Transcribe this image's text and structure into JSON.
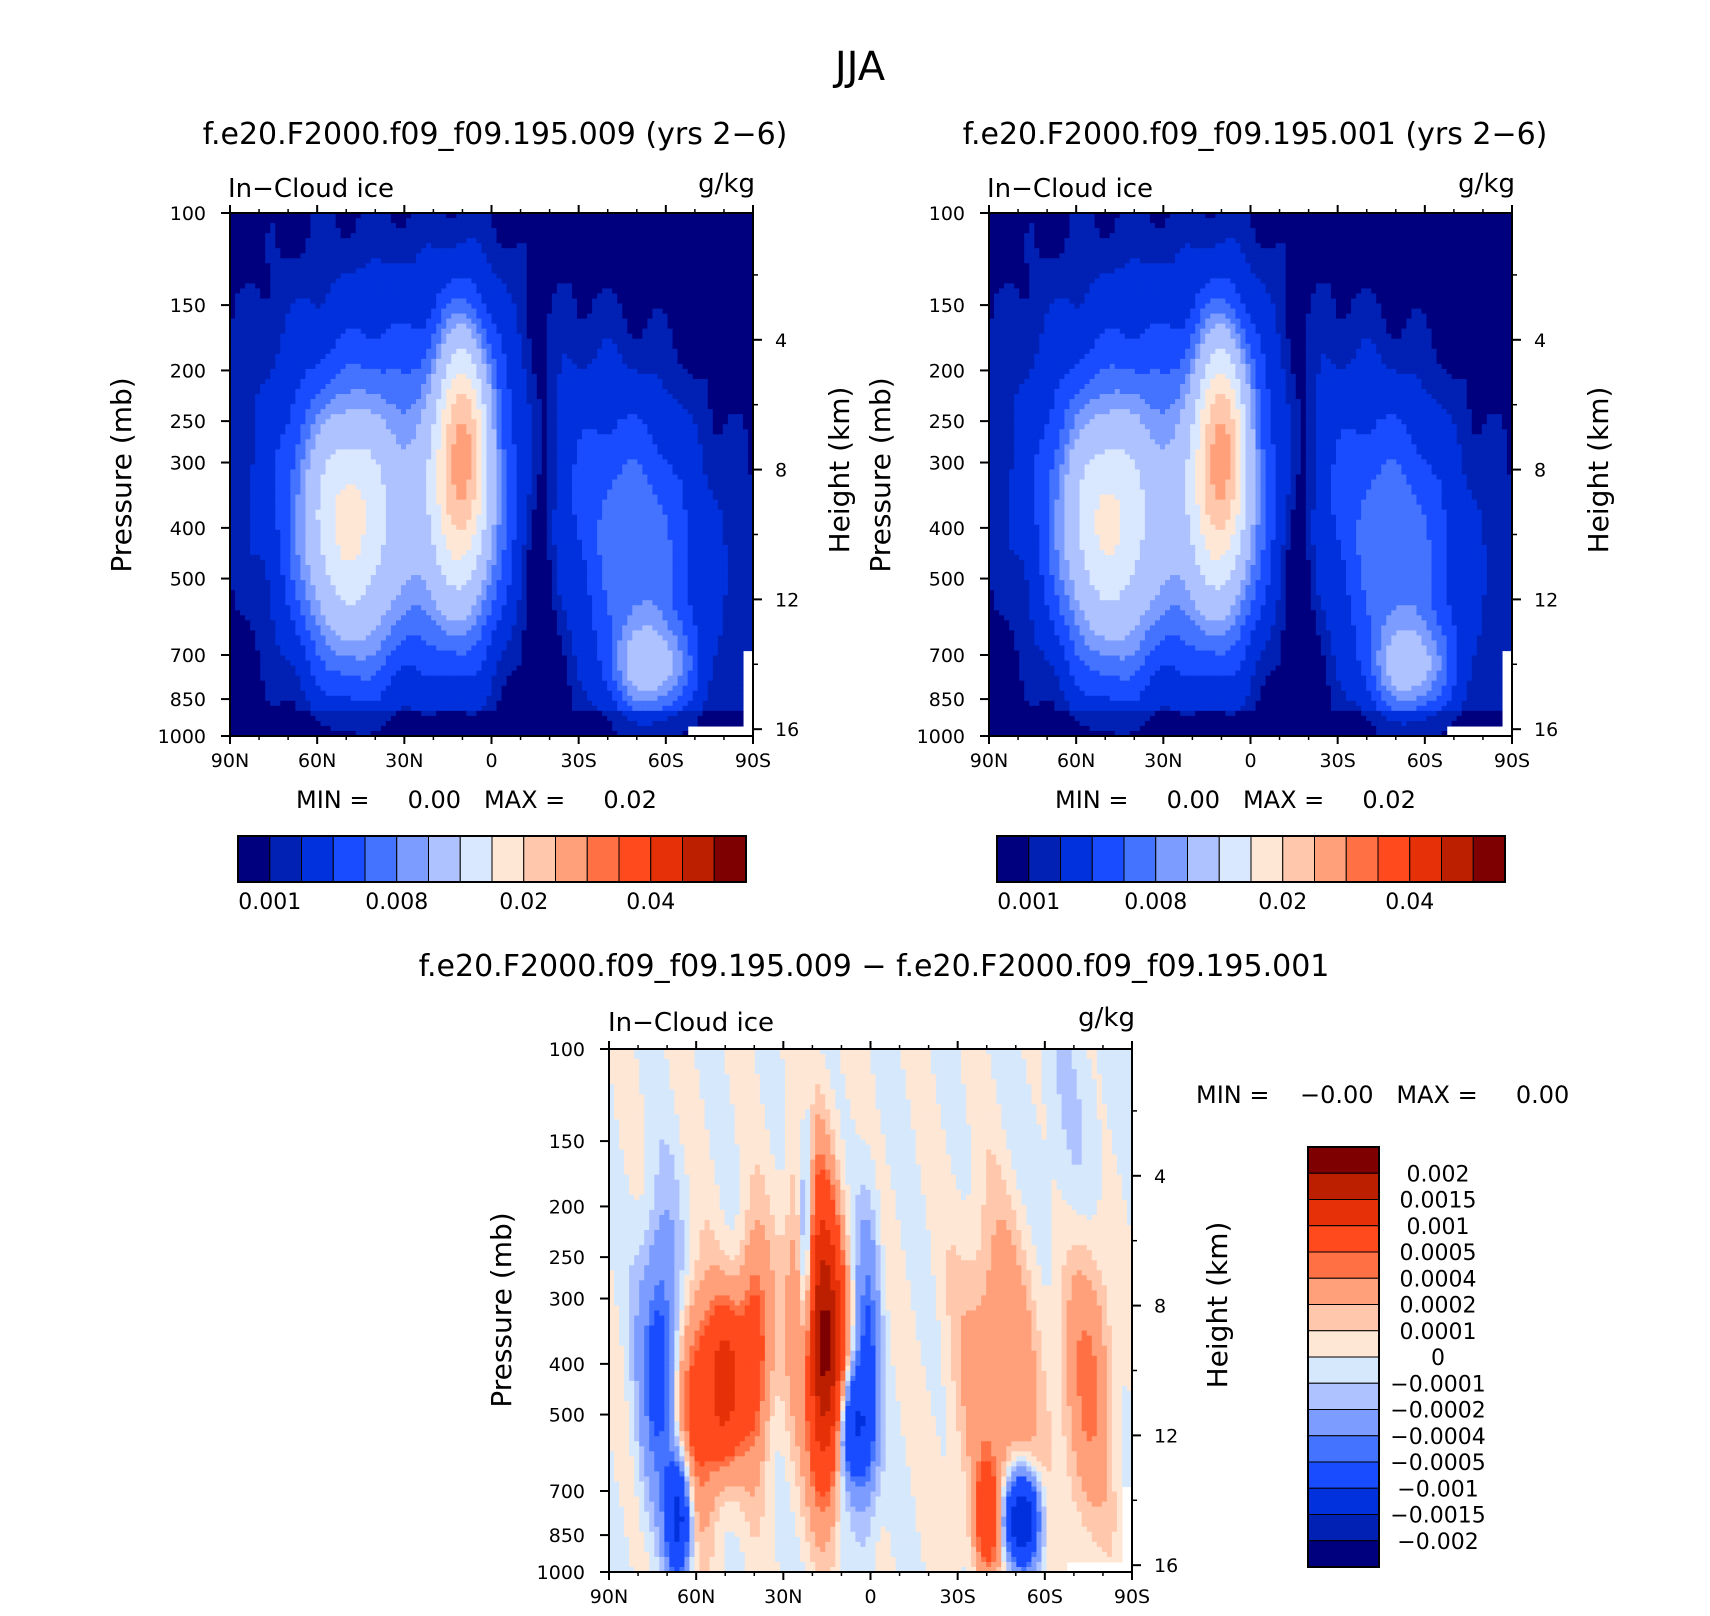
{
  "figure_title": "JJA",
  "colors": {
    "abs_palette": [
      "#00007e",
      "#0021b4",
      "#0031dd",
      "#1a4cff",
      "#4473ff",
      "#7c9dff",
      "#aec2ff",
      "#d9e7ff",
      "#ffe7d6",
      "#ffc8ad",
      "#ffa07a",
      "#ff7044",
      "#ff4a1e",
      "#e53008",
      "#bb1f00",
      "#7e0000"
    ],
    "diff_palette": [
      "#00007e",
      "#0021b4",
      "#0031dd",
      "#1a4cff",
      "#4473ff",
      "#7c9dff",
      "#aec2ff",
      "#d6e8fb",
      "#ffe7d6",
      "#ffc8ad",
      "#ffa07a",
      "#ff7044",
      "#ff4a1e",
      "#e53008",
      "#bb1f00",
      "#7e0000"
    ]
  },
  "panels": {
    "left": {
      "title": "f.e20.F2000.f09_f09.195.009 (yrs 2−6)",
      "variable": "In−Cloud ice",
      "units": "g/kg",
      "ylabel": "Pressure (mb)",
      "ylabel_right": "Height (km)",
      "minmax": "MIN =     0.00   MAX =     0.02",
      "colorbar_labels": [
        "0.001",
        "0.008",
        "0.02",
        "0.04"
      ]
    },
    "right": {
      "title": "f.e20.F2000.f09_f09.195.001 (yrs 2−6)",
      "variable": "In−Cloud ice",
      "units": "g/kg",
      "ylabel": "Pressure (mb)",
      "ylabel_right": "Height (km)",
      "minmax": "MIN =     0.00   MAX =     0.02",
      "colorbar_labels": [
        "0.001",
        "0.008",
        "0.02",
        "0.04"
      ]
    },
    "diff": {
      "title": "f.e20.F2000.f09_f09.195.009 − f.e20.F2000.f09_f09.195.001",
      "variable": "In−Cloud ice",
      "units": "g/kg",
      "ylabel": "Pressure (mb)",
      "ylabel_right": "Height (km)",
      "minmax": "MIN =    −0.00   MAX =     0.00",
      "colorbar_labels": [
        "0.002",
        "0.0015",
        "0.001",
        "0.0005",
        "0.0004",
        "0.0002",
        "0.0001",
        "0",
        "−0.0001",
        "−0.0002",
        "−0.0004",
        "−0.0005",
        "−0.001",
        "−0.0015",
        "−0.002"
      ]
    }
  },
  "chart_data": [
    {
      "type": "heatmap",
      "title": "f.e20.F2000.f09_f09.195.009 (yrs 2−6)",
      "xlabel": "",
      "ylabel": "Pressure (mb)",
      "ylabel_right": "Height (km)",
      "x_ticks": [
        "90N",
        "60N",
        "30N",
        "0",
        "30S",
        "60S",
        "90S"
      ],
      "y_ticks": [
        "100",
        "150",
        "200",
        "250",
        "300",
        "400",
        "500",
        "700",
        "850",
        "1000"
      ],
      "y_right_ticks": [
        "16",
        "12",
        "8",
        "4"
      ],
      "y_scale": "log",
      "ylim": [
        1000,
        100
      ],
      "min": 0.0,
      "max": 0.02,
      "levels": [
        0.001,
        0.002,
        0.004,
        0.006,
        0.008,
        0.01,
        0.015,
        0.02,
        0.025,
        0.03,
        0.035,
        0.04,
        0.045,
        0.05,
        0.055
      ],
      "features": [
        {
          "name": "NH mid-latitude ice maximum",
          "lat": 50,
          "p": 380,
          "value": 0.012
        },
        {
          "name": "Tropical upper-troposphere maximum",
          "lat": 10,
          "p": 270,
          "value": 0.021
        },
        {
          "name": "SH mid-latitude low-level maximum",
          "lat": -55,
          "p": 750,
          "value": 0.012
        }
      ]
    },
    {
      "type": "heatmap",
      "title": "f.e20.F2000.f09_f09.195.001 (yrs 2−6)",
      "xlabel": "",
      "ylabel": "Pressure (mb)",
      "ylabel_right": "Height (km)",
      "x_ticks": [
        "90N",
        "60N",
        "30N",
        "0",
        "30S",
        "60S",
        "90S"
      ],
      "y_ticks": [
        "100",
        "150",
        "200",
        "250",
        "300",
        "400",
        "500",
        "700",
        "850",
        "1000"
      ],
      "y_right_ticks": [
        "16",
        "12",
        "8",
        "4"
      ],
      "y_scale": "log",
      "ylim": [
        1000,
        100
      ],
      "min": 0.0,
      "max": 0.02,
      "levels": [
        0.001,
        0.002,
        0.004,
        0.006,
        0.008,
        0.01,
        0.015,
        0.02,
        0.025,
        0.03,
        0.035,
        0.04,
        0.045,
        0.05,
        0.055
      ],
      "features": [
        {
          "name": "NH mid-latitude ice maximum",
          "lat": 50,
          "p": 380,
          "value": 0.011
        },
        {
          "name": "Tropical upper-troposphere maximum",
          "lat": 10,
          "p": 270,
          "value": 0.021
        },
        {
          "name": "SH mid-latitude low-level maximum",
          "lat": -52,
          "p": 760,
          "value": 0.011
        }
      ]
    },
    {
      "type": "heatmap",
      "title": "f.e20.F2000.f09_f09.195.009 − f.e20.F2000.f09_f09.195.001",
      "xlabel": "",
      "ylabel": "Pressure (mb)",
      "ylabel_right": "Height (km)",
      "x_ticks": [
        "90N",
        "60N",
        "30N",
        "0",
        "30S",
        "60S",
        "90S"
      ],
      "y_ticks": [
        "100",
        "150",
        "200",
        "250",
        "300",
        "400",
        "500",
        "700",
        "850",
        "1000"
      ],
      "y_right_ticks": [
        "16",
        "12",
        "8",
        "4"
      ],
      "y_scale": "log",
      "ylim": [
        1000,
        100
      ],
      "min": -0.0,
      "max": 0.0,
      "levels": [
        -0.002,
        -0.0015,
        -0.001,
        -0.0005,
        -0.0004,
        -0.0002,
        -0.0001,
        0,
        0.0001,
        0.0002,
        0.0004,
        0.0005,
        0.001,
        0.0015,
        0.002
      ],
      "features": [
        {
          "name": "Positive anomaly",
          "lat": 15,
          "p": 350,
          "value": 0.0015
        },
        {
          "name": "Positive anomaly",
          "lat": 50,
          "p": 400,
          "value": 0.001
        },
        {
          "name": "Negative anomaly",
          "lat": 65,
          "p": 780,
          "value": -0.001
        },
        {
          "name": "Negative anomaly",
          "lat": -52,
          "p": 780,
          "value": -0.0015
        },
        {
          "name": "Positive anomaly",
          "lat": -40,
          "p": 780,
          "value": 0.0005
        }
      ]
    }
  ]
}
